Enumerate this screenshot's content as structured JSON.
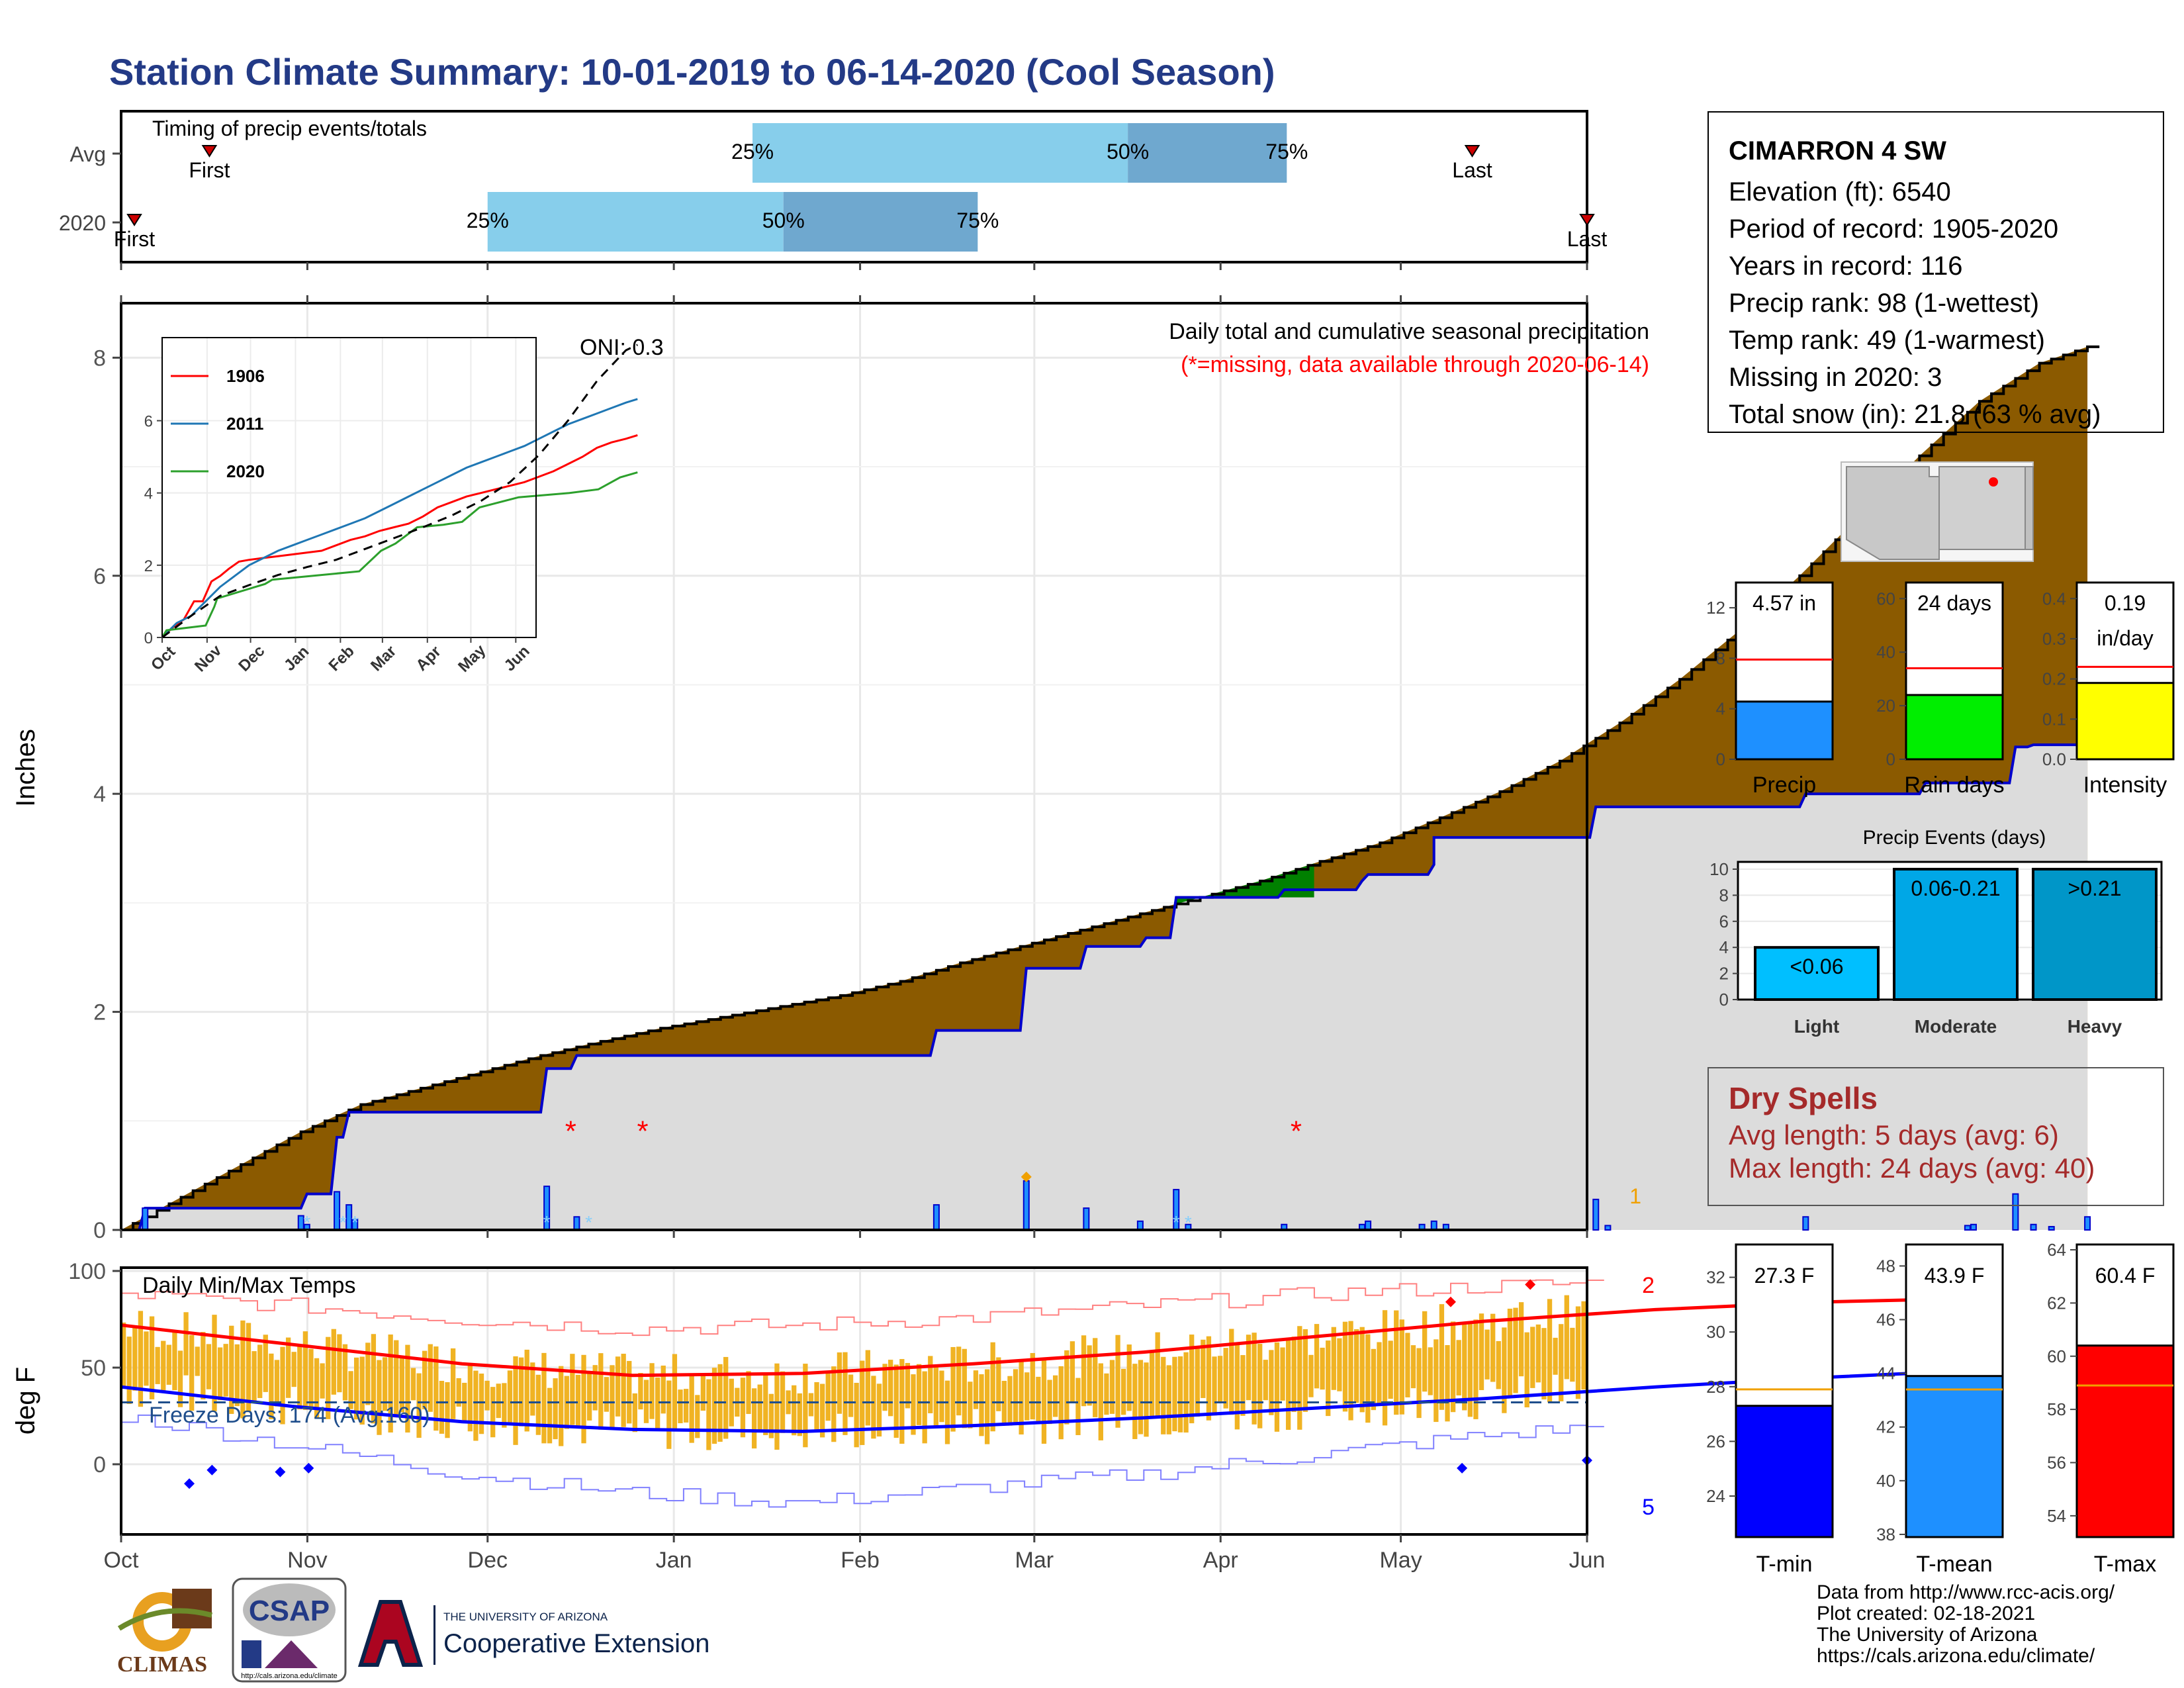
{
  "title": "Station Climate Summary: 10-01-2019 to 06-14-2020 (Cool Season)",
  "colors": {
    "title": "#233a86",
    "precip_fill": "#8b5a00",
    "normal_fill": "#dcdcdc",
    "above_fill": "#008000",
    "obs_line": "#0000cc",
    "temp_bar": "#f0b323",
    "tmax_line": "#ff0000",
    "tmin_line": "#0000ff"
  },
  "timing": {
    "title": "Timing of precip events/totals",
    "rows": [
      {
        "label": "Avg",
        "first": "First",
        "last": "Last",
        "p25": "25%",
        "p50": "50%",
        "p75": "75%",
        "first_day": 20,
        "p25_day": 143,
        "p50_day": 228,
        "p75_day": 264,
        "last_day": 306
      },
      {
        "label": "2020",
        "first": "First",
        "last": "Last",
        "p25": "25%",
        "p50": "50%",
        "p75": "75%",
        "first_day": 3,
        "p25_day": 83,
        "p50_day": 150,
        "p75_day": 194,
        "last_day": 332
      }
    ]
  },
  "precip_chart": {
    "ylabel": "Inches",
    "yticks": [
      0,
      2,
      4,
      6,
      8
    ],
    "ylim": [
      0,
      8.5
    ],
    "annotation_title": "Daily total and cumulative seasonal precipitation",
    "annotation_missing": "(*=missing, data available through 2020-06-14)",
    "oni": "ONI: 0.3",
    "corner_count": "1",
    "missing_days": [
      75,
      87,
      196
    ],
    "normal_cum": [
      [
        0,
        0
      ],
      [
        10,
        0.3
      ],
      [
        20,
        0.6
      ],
      [
        30,
        0.9
      ],
      [
        40,
        1.15
      ],
      [
        50,
        1.3
      ],
      [
        60,
        1.45
      ],
      [
        70,
        1.6
      ],
      [
        80,
        1.73
      ],
      [
        90,
        1.85
      ],
      [
        100,
        1.95
      ],
      [
        110,
        2.05
      ],
      [
        120,
        2.15
      ],
      [
        130,
        2.28
      ],
      [
        140,
        2.45
      ],
      [
        150,
        2.6
      ],
      [
        160,
        2.75
      ],
      [
        170,
        2.9
      ],
      [
        180,
        3.05
      ],
      [
        190,
        3.2
      ],
      [
        200,
        3.38
      ],
      [
        210,
        3.55
      ],
      [
        220,
        3.78
      ],
      [
        230,
        4.02
      ],
      [
        240,
        4.3
      ],
      [
        250,
        4.65
      ],
      [
        260,
        5.05
      ],
      [
        270,
        5.5
      ],
      [
        280,
        6.0
      ],
      [
        290,
        6.55
      ],
      [
        300,
        7.1
      ],
      [
        310,
        7.6
      ],
      [
        320,
        7.95
      ],
      [
        328,
        8.1
      ]
    ],
    "obs_cum": [
      [
        0,
        0
      ],
      [
        3,
        0
      ],
      [
        4,
        0.2
      ],
      [
        30,
        0.2
      ],
      [
        31,
        0.33
      ],
      [
        35,
        0.33
      ],
      [
        36,
        0.85
      ],
      [
        37,
        0.85
      ],
      [
        38,
        1.08
      ],
      [
        70,
        1.08
      ],
      [
        71,
        1.48
      ],
      [
        75,
        1.48
      ],
      [
        76,
        1.6
      ],
      [
        135,
        1.6
      ],
      [
        136,
        1.83
      ],
      [
        150,
        1.83
      ],
      [
        151,
        2.4
      ],
      [
        160,
        2.4
      ],
      [
        161,
        2.6
      ],
      [
        170,
        2.6
      ],
      [
        171,
        2.68
      ],
      [
        175,
        2.68
      ],
      [
        176,
        3.05
      ],
      [
        193,
        3.05
      ],
      [
        194,
        3.12
      ],
      [
        206,
        3.12
      ],
      [
        207,
        3.2
      ],
      [
        208,
        3.26
      ],
      [
        218,
        3.26
      ],
      [
        219,
        3.35
      ],
      [
        219,
        3.6
      ],
      [
        245,
        3.6
      ],
      [
        246,
        3.88
      ],
      [
        280,
        3.88
      ],
      [
        281,
        4.0
      ],
      [
        300,
        4.0
      ],
      [
        301,
        4.1
      ],
      [
        315,
        4.1
      ],
      [
        316,
        4.43
      ],
      [
        318,
        4.43
      ],
      [
        319,
        4.45
      ],
      [
        328,
        4.45
      ],
      [
        328,
        4.57
      ]
    ],
    "daily_bars": [
      [
        4,
        0.2
      ],
      [
        30,
        0.13
      ],
      [
        31,
        0.05
      ],
      [
        36,
        0.35
      ],
      [
        38,
        0.23
      ],
      [
        39,
        0.1
      ],
      [
        71,
        0.4
      ],
      [
        76,
        0.12
      ],
      [
        136,
        0.23
      ],
      [
        151,
        0.45
      ],
      [
        161,
        0.2
      ],
      [
        170,
        0.08
      ],
      [
        176,
        0.37
      ],
      [
        178,
        0.05
      ],
      [
        194,
        0.05
      ],
      [
        207,
        0.05
      ],
      [
        208,
        0.08
      ],
      [
        217,
        0.05
      ],
      [
        219,
        0.08
      ],
      [
        221,
        0.05
      ],
      [
        246,
        0.28
      ],
      [
        248,
        0.04
      ],
      [
        281,
        0.12
      ],
      [
        308,
        0.04
      ],
      [
        309,
        0.05
      ],
      [
        316,
        0.33
      ],
      [
        319,
        0.05
      ],
      [
        322,
        0.03
      ],
      [
        328,
        0.12
      ]
    ],
    "xticks": [
      "Oct",
      "Nov",
      "Dec",
      "Jan",
      "Feb",
      "Mar",
      "Apr",
      "May",
      "Jun"
    ],
    "xtick_days": [
      0,
      31,
      61,
      92,
      123,
      152,
      183,
      213,
      244
    ]
  },
  "inset": {
    "yticks": [
      0,
      2,
      4,
      6
    ],
    "xticks": [
      "Oct",
      "Nov",
      "Dec",
      "Jan",
      "Feb",
      "Mar",
      "Apr",
      "May",
      "Jun"
    ],
    "series": [
      {
        "name": "1906",
        "color": "#ff0000",
        "points": [
          [
            0,
            0
          ],
          [
            8,
            0.3
          ],
          [
            15,
            0.5
          ],
          [
            22,
            1.0
          ],
          [
            28,
            1.0
          ],
          [
            34,
            1.55
          ],
          [
            40,
            1.7
          ],
          [
            46,
            1.9
          ],
          [
            53,
            2.1
          ],
          [
            60,
            2.15
          ],
          [
            70,
            2.2
          ],
          [
            80,
            2.25
          ],
          [
            90,
            2.3
          ],
          [
            100,
            2.35
          ],
          [
            110,
            2.4
          ],
          [
            120,
            2.55
          ],
          [
            130,
            2.7
          ],
          [
            140,
            2.8
          ],
          [
            150,
            2.95
          ],
          [
            160,
            3.05
          ],
          [
            170,
            3.15
          ],
          [
            180,
            3.35
          ],
          [
            190,
            3.6
          ],
          [
            200,
            3.75
          ],
          [
            210,
            3.9
          ],
          [
            220,
            4.0
          ],
          [
            230,
            4.1
          ],
          [
            240,
            4.2
          ],
          [
            250,
            4.3
          ],
          [
            260,
            4.45
          ],
          [
            270,
            4.6
          ],
          [
            280,
            4.8
          ],
          [
            290,
            5.0
          ],
          [
            300,
            5.25
          ],
          [
            310,
            5.4
          ],
          [
            320,
            5.5
          ],
          [
            328,
            5.6
          ]
        ]
      },
      {
        "name": "2011",
        "color": "#1f77b4",
        "points": [
          [
            0,
            0
          ],
          [
            10,
            0.4
          ],
          [
            20,
            0.6
          ],
          [
            30,
            1.0
          ],
          [
            40,
            1.4
          ],
          [
            50,
            1.7
          ],
          [
            60,
            2.0
          ],
          [
            70,
            2.2
          ],
          [
            80,
            2.4
          ],
          [
            90,
            2.55
          ],
          [
            100,
            2.7
          ],
          [
            110,
            2.85
          ],
          [
            120,
            3.0
          ],
          [
            130,
            3.15
          ],
          [
            140,
            3.3
          ],
          [
            150,
            3.5
          ],
          [
            160,
            3.7
          ],
          [
            170,
            3.9
          ],
          [
            180,
            4.1
          ],
          [
            190,
            4.3
          ],
          [
            200,
            4.5
          ],
          [
            210,
            4.7
          ],
          [
            220,
            4.85
          ],
          [
            230,
            5.0
          ],
          [
            240,
            5.15
          ],
          [
            250,
            5.3
          ],
          [
            260,
            5.5
          ],
          [
            270,
            5.7
          ],
          [
            280,
            5.9
          ],
          [
            290,
            6.05
          ],
          [
            300,
            6.2
          ],
          [
            310,
            6.35
          ],
          [
            320,
            6.5
          ],
          [
            328,
            6.6
          ]
        ]
      },
      {
        "name": "2020",
        "color": "#2ca02c",
        "points": [
          [
            0,
            0
          ],
          [
            3,
            0.2
          ],
          [
            30,
            0.33
          ],
          [
            36,
            0.85
          ],
          [
            38,
            1.08
          ],
          [
            71,
            1.48
          ],
          [
            76,
            1.6
          ],
          [
            136,
            1.83
          ],
          [
            151,
            2.4
          ],
          [
            161,
            2.6
          ],
          [
            176,
            3.05
          ],
          [
            194,
            3.12
          ],
          [
            207,
            3.2
          ],
          [
            219,
            3.6
          ],
          [
            246,
            3.88
          ],
          [
            281,
            4.0
          ],
          [
            301,
            4.1
          ],
          [
            316,
            4.43
          ],
          [
            328,
            4.57
          ]
        ]
      }
    ],
    "normal": [
      [
        0,
        0
      ],
      [
        20,
        0.6
      ],
      [
        40,
        1.15
      ],
      [
        60,
        1.45
      ],
      [
        80,
        1.73
      ],
      [
        100,
        1.95
      ],
      [
        120,
        2.15
      ],
      [
        140,
        2.45
      ],
      [
        160,
        2.75
      ],
      [
        180,
        3.05
      ],
      [
        200,
        3.38
      ],
      [
        220,
        3.78
      ],
      [
        240,
        4.3
      ],
      [
        260,
        5.05
      ],
      [
        280,
        6.0
      ],
      [
        300,
        7.1
      ],
      [
        320,
        7.95
      ],
      [
        328,
        8.1
      ]
    ]
  },
  "temp_chart": {
    "ylabel": "deg F",
    "yticks": [
      0,
      50,
      100
    ],
    "title": "Daily Min/Max Temps",
    "freeze_days": "Freeze Days: 174 (Avg:160)",
    "count_high": "2",
    "count_low": "5",
    "xticks": [
      "Oct",
      "Nov",
      "Dec",
      "Jan",
      "Feb",
      "Mar",
      "Apr",
      "May",
      "Jun"
    ],
    "freeze_line": 32,
    "tmax_norm": [
      [
        0,
        72
      ],
      [
        30,
        62
      ],
      [
        60,
        52
      ],
      [
        90,
        46
      ],
      [
        120,
        47
      ],
      [
        150,
        52
      ],
      [
        180,
        58
      ],
      [
        210,
        66
      ],
      [
        240,
        74
      ],
      [
        270,
        80
      ],
      [
        300,
        84
      ],
      [
        330,
        86
      ]
    ],
    "tmin_norm": [
      [
        0,
        40
      ],
      [
        30,
        30
      ],
      [
        60,
        22
      ],
      [
        90,
        18
      ],
      [
        120,
        17
      ],
      [
        150,
        20
      ],
      [
        180,
        24
      ],
      [
        210,
        29
      ],
      [
        240,
        34
      ],
      [
        270,
        40
      ],
      [
        300,
        45
      ],
      [
        330,
        49
      ]
    ],
    "tmax_rec": [
      [
        0,
        88
      ],
      [
        30,
        82
      ],
      [
        60,
        75
      ],
      [
        90,
        70
      ],
      [
        120,
        72
      ],
      [
        150,
        76
      ],
      [
        180,
        82
      ],
      [
        210,
        88
      ],
      [
        240,
        92
      ],
      [
        270,
        95
      ],
      [
        300,
        97
      ],
      [
        330,
        96
      ]
    ],
    "tmin_rec": [
      [
        0,
        25
      ],
      [
        30,
        10
      ],
      [
        60,
        -5
      ],
      [
        90,
        -15
      ],
      [
        120,
        -20
      ],
      [
        150,
        -12
      ],
      [
        180,
        -5
      ],
      [
        210,
        5
      ],
      [
        240,
        15
      ],
      [
        270,
        22
      ],
      [
        300,
        30
      ],
      [
        330,
        35
      ]
    ]
  },
  "info": {
    "station": "CIMARRON 4 SW",
    "lines": [
      "Elevation (ft): 6540",
      "Period of record: 1905-2020",
      "Years in record: 116",
      "Precip rank: 98 (1-wettest)",
      "Temp rank: 49 (1-warmest)",
      "Missing in 2020: 3",
      "Total snow (in): 21.8 (63 % avg)"
    ]
  },
  "small_bars": {
    "precip": {
      "label": "Precip",
      "value_text": "4.57 in",
      "value": 4.57,
      "avg": 7.9,
      "yticks": [
        0,
        4,
        8,
        12
      ],
      "ymax": 14,
      "color": "#1e90ff"
    },
    "rain_days": {
      "label": "Rain days",
      "value_text": "24 days",
      "value": 24,
      "avg": 34,
      "yticks": [
        0,
        20,
        40,
        60
      ],
      "ymax": 66,
      "color": "#00ee00"
    },
    "intensity": {
      "label": "Intensity",
      "value_text": "0.19",
      "value_text2": "in/day",
      "value": 0.19,
      "avg": 0.23,
      "yticks": [
        "0.0",
        "0.1",
        "0.2",
        "0.3",
        "0.4"
      ],
      "ymax": 0.44,
      "color": "#ffff00"
    }
  },
  "precip_events": {
    "title": "Precip Events (days)",
    "yticks": [
      0,
      2,
      4,
      6,
      8,
      10
    ],
    "bars": [
      {
        "category": "Light",
        "label": "<0.06",
        "value": 4,
        "color": "#00bfff"
      },
      {
        "category": "Moderate",
        "label": "0.06-0.21",
        "value": 10,
        "color": "#00a7e6"
      },
      {
        "category": "Heavy",
        "label": ">0.21",
        "value": 10,
        "color": "#0096c8"
      }
    ]
  },
  "dry_spells": {
    "title": "Dry Spells",
    "avg": "Avg length: 5 days (avg: 6)",
    "max": "Max length: 24 days (avg: 40)"
  },
  "temp_bars": {
    "tmin": {
      "label": "T-min",
      "value_text": "27.3 F",
      "value": 27.3,
      "avg": 27.9,
      "yticks": [
        24,
        26,
        28,
        30,
        32
      ],
      "ylim": [
        22.5,
        33.2
      ],
      "color": "#0000ff"
    },
    "tmean": {
      "label": "T-mean",
      "value_text": "43.9 F",
      "value": 43.9,
      "avg": 43.4,
      "yticks": [
        38,
        40,
        42,
        44,
        46,
        48
      ],
      "ylim": [
        37.9,
        48.8
      ],
      "color": "#1e90ff"
    },
    "tmax": {
      "label": "T-max",
      "value_text": "60.4 F",
      "value": 60.4,
      "avg": 58.9,
      "yticks": [
        54,
        56,
        58,
        60,
        62,
        64
      ],
      "ylim": [
        53.2,
        64.2
      ],
      "color": "#ff0000"
    }
  },
  "footer": {
    "lines": [
      "Data from http://www.rcc-acis.org/",
      "Plot created: 02-18-2021",
      "The University of Arizona",
      "https://cals.arizona.edu/climate/"
    ],
    "climas": "CLIMAS",
    "csap": "CSAP",
    "csap_url": "http://cals.arizona.edu/climate",
    "ua_small": "THE UNIVERSITY OF ARIZONA",
    "ua_big": "Cooperative Extension"
  }
}
